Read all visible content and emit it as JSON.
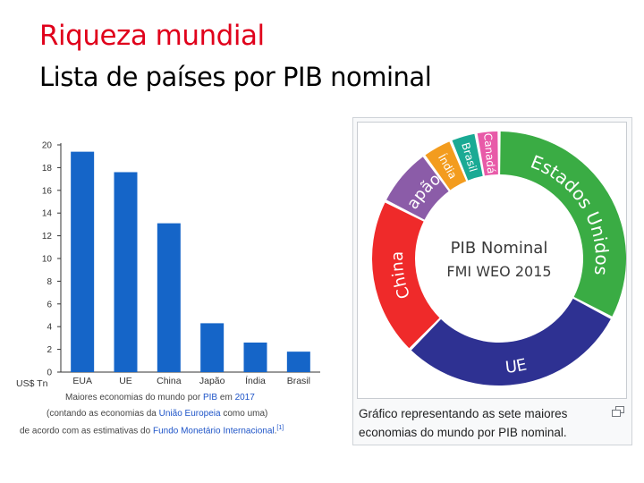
{
  "slide": {
    "title": "Riqueza mundial",
    "subtitle": "Lista de países por PIB nominal"
  },
  "chart_data": [
    {
      "type": "bar",
      "categories": [
        "EUA",
        "UE",
        "China",
        "Japão",
        "Índia",
        "Brasil"
      ],
      "values": [
        19.4,
        17.6,
        13.1,
        4.3,
        2.6,
        1.8
      ],
      "ylim": [
        0,
        20
      ],
      "yticks": [
        0,
        2,
        4,
        6,
        8,
        10,
        12,
        14,
        16,
        18,
        20
      ],
      "ylabel": "US$ Tn",
      "bar_color": "#1565c8",
      "grid": false,
      "caption": {
        "l1_pre": "Maiores economias do mundo por ",
        "l1_link": "PIB",
        "l1_post": " em ",
        "l1_year": "2017",
        "l2_pre": "(contando as economias da ",
        "l2_link": "União Europeia",
        "l2_post": " como uma)",
        "l3_pre": "de acordo com as estimativas do ",
        "l3_link": "Fundo Monetário Internacional",
        "l3_post": ".",
        "ref": "[1]"
      }
    },
    {
      "type": "pie",
      "center_title_1": "PIB Nominal",
      "center_title_2": "FMI WEO 2015",
      "slices": [
        {
          "label": "Estados Unidos",
          "value": 17.9,
          "color": "#3aac44"
        },
        {
          "label": "UE",
          "value": 16.2,
          "color": "#2e3192"
        },
        {
          "label": "China",
          "value": 11.0,
          "color": "#ef2a2a"
        },
        {
          "label": "Japão",
          "value": 4.1,
          "color": "#8b5ca8"
        },
        {
          "label": "Índia",
          "value": 2.1,
          "color": "#f39c1e"
        },
        {
          "label": "Brasil",
          "value": 1.8,
          "color": "#1aaa94"
        },
        {
          "label": "Canadá",
          "value": 1.6,
          "color": "#e85aa8"
        }
      ],
      "caption": "Gráfico representando as sete maiores economias do mundo por PIB nominal."
    }
  ],
  "icons": {
    "enlarge": "enlarge-icon"
  }
}
